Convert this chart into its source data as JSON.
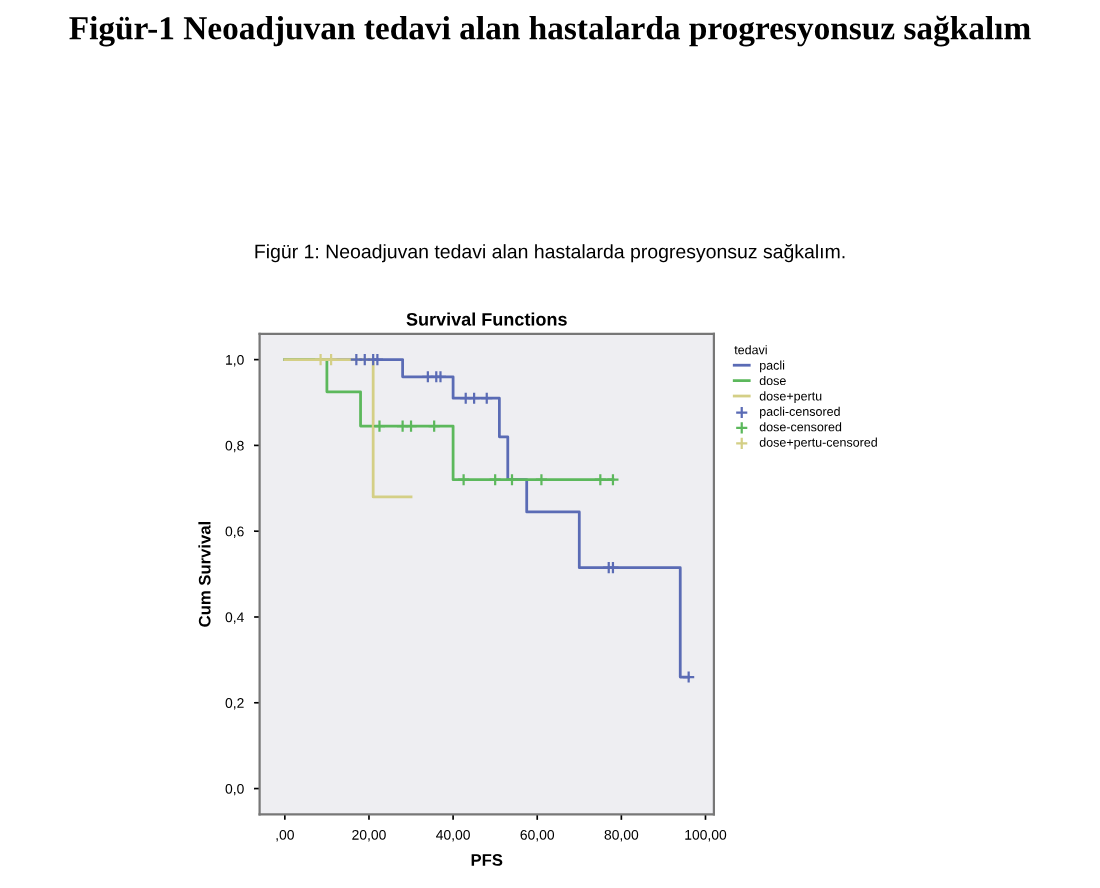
{
  "chart_data": {
    "type": "step",
    "title": "Survival Functions",
    "xlabel": "PFS",
    "ylabel": "Cum Survival",
    "legend_title": "tedavi",
    "annotations": [
      "Figür-1 Neoadjuvan tedavi alan hastalarda progresyonsuz sağkalım",
      "Figür 1: Neoadjuvan tedavi alan hastalarda progresyonsuz sağkalım."
    ],
    "xlim": [
      -6,
      102
    ],
    "ylim": [
      -0.06,
      1.06
    ],
    "xticks": [
      {
        "value": 0,
        "label": ",00"
      },
      {
        "value": 20,
        "label": "20,00"
      },
      {
        "value": 40,
        "label": "40,00"
      },
      {
        "value": 60,
        "label": "60,00"
      },
      {
        "value": 80,
        "label": "80,00"
      },
      {
        "value": 100,
        "label": "100,00"
      }
    ],
    "yticks": [
      {
        "value": 0,
        "label": "0,0"
      },
      {
        "value": 0.2,
        "label": "0,2"
      },
      {
        "value": 0.4,
        "label": "0,4"
      },
      {
        "value": 0.6,
        "label": "0,6"
      },
      {
        "value": 0.8,
        "label": "0,8"
      },
      {
        "value": 1,
        "label": "1,0"
      }
    ],
    "grid": false,
    "legend": "right",
    "line_style": "solid",
    "series": [
      {
        "name": "pacli",
        "color": "#5a6bb5",
        "x": [
          0,
          28,
          40,
          51,
          53,
          57.5,
          70,
          94,
          96
        ],
        "values": [
          1,
          0.96,
          0.91,
          0.82,
          0.72,
          0.645,
          0.515,
          0.26,
          0.26
        ]
      },
      {
        "name": "dose",
        "color": "#5cb85c",
        "x": [
          0,
          10,
          18,
          40,
          78
        ],
        "values": [
          1,
          0.925,
          0.845,
          0.72,
          0.72
        ]
      },
      {
        "name": "dose+pertu",
        "color": "#d4cf86",
        "x": [
          0,
          21,
          30
        ],
        "values": [
          1,
          0.68,
          0.68
        ]
      },
      {
        "name": "pacli-censored",
        "type": "scatter",
        "marker": "cross",
        "color": "#5a6bb5",
        "x": [
          17,
          19,
          21,
          22,
          34,
          36,
          37,
          43,
          45,
          48,
          77,
          78,
          96
        ],
        "values": [
          1,
          1,
          1,
          1,
          0.96,
          0.96,
          0.96,
          0.91,
          0.91,
          0.91,
          0.515,
          0.515,
          0.26
        ]
      },
      {
        "name": "dose-censored",
        "type": "scatter",
        "marker": "cross",
        "color": "#5cb85c",
        "x": [
          22.5,
          28,
          30,
          35.5,
          42.5,
          50,
          54,
          61,
          75,
          78
        ],
        "values": [
          0.845,
          0.845,
          0.845,
          0.845,
          0.72,
          0.72,
          0.72,
          0.72,
          0.72,
          0.72
        ]
      },
      {
        "name": "dose+pertu-censored",
        "type": "scatter",
        "marker": "cross",
        "color": "#d4cf86",
        "x": [
          8.5,
          11
        ],
        "values": [
          1,
          1
        ]
      }
    ]
  }
}
